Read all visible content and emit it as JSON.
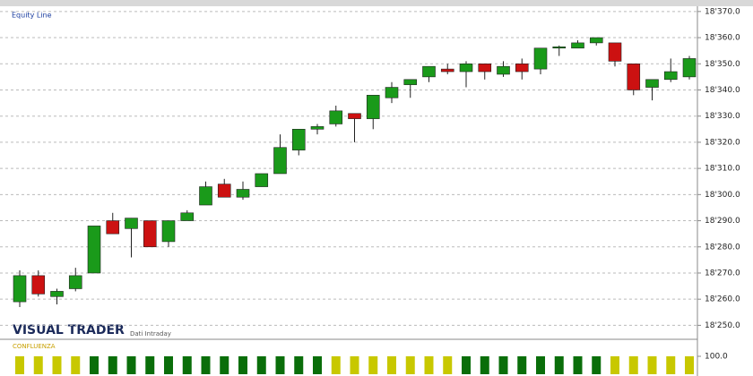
{
  "branding": {
    "name": "VISUAL TRADER",
    "subtitle": "Dati Intraday"
  },
  "chart_data": [
    {
      "type": "candlestick",
      "title": "Equity Line",
      "up_color": "#1a9a1a",
      "down_color": "#cc1111",
      "grid": true,
      "ylim": [
        18245,
        18372
      ],
      "yticks": [
        {
          "value": 18370,
          "label": "18'370.0"
        },
        {
          "value": 18360,
          "label": "18'360.0"
        },
        {
          "value": 18350,
          "label": "18'350.0"
        },
        {
          "value": 18340,
          "label": "18'340.0"
        },
        {
          "value": 18330,
          "label": "18'330.0"
        },
        {
          "value": 18320,
          "label": "18'320.0"
        },
        {
          "value": 18310,
          "label": "18'310.0"
        },
        {
          "value": 18300,
          "label": "18'300.0"
        },
        {
          "value": 18290,
          "label": "18'290.0"
        },
        {
          "value": 18280,
          "label": "18'280.0"
        },
        {
          "value": 18270,
          "label": "18'270.0"
        },
        {
          "value": 18260,
          "label": "18'260.0"
        },
        {
          "value": 18250,
          "label": "18'250.0"
        }
      ],
      "open": [
        18259,
        18269,
        18261,
        18264,
        18270,
        18290,
        18287,
        18290,
        18282,
        18290,
        18296,
        18304,
        18299,
        18303,
        18308,
        18317,
        18325,
        18327,
        18331,
        18329,
        18337,
        18342,
        18345,
        18348,
        18347,
        18350,
        18346,
        18350,
        18348,
        18356,
        18356,
        18358,
        18358,
        18350,
        18341,
        18344,
        18345
      ],
      "high": [
        18271,
        18271,
        18264,
        18272,
        18288,
        18293,
        18291,
        18290,
        18290,
        18294,
        18305,
        18306,
        18305,
        18308,
        18323,
        18325,
        18327,
        18334,
        18331,
        18338,
        18343,
        18344,
        18349,
        18350,
        18351,
        18350,
        18351,
        18352,
        18356,
        18357,
        18359,
        18360,
        18358,
        18350,
        18344,
        18352,
        18353
      ],
      "low": [
        18257,
        18261,
        18258,
        18263,
        18270,
        18285,
        18276,
        18280,
        18280,
        18290,
        18296,
        18299,
        18298,
        18303,
        18308,
        18315,
        18323,
        18326,
        18320,
        18325,
        18335,
        18337,
        18343,
        18346,
        18341,
        18344,
        18345,
        18344,
        18346,
        18353,
        18356,
        18357,
        18349,
        18338,
        18336,
        18343,
        18344
      ],
      "close": [
        18269,
        18262,
        18263,
        18269,
        18288,
        18285,
        18291,
        18280,
        18290,
        18293,
        18303,
        18299,
        18302,
        18308,
        18318,
        18325,
        18326,
        18332,
        18329,
        18338,
        18341,
        18344,
        18349,
        18347,
        18350,
        18347,
        18349,
        18347,
        18356,
        18356.5,
        18358,
        18360,
        18351,
        18340,
        18344,
        18347,
        18352
      ]
    },
    {
      "type": "bar",
      "title": "CONFLUENZA",
      "ylim": [
        0,
        100
      ],
      "yticks": [
        {
          "value": 100,
          "label": "100.0"
        }
      ],
      "values": [
        100,
        100,
        100,
        100,
        100,
        100,
        100,
        100,
        100,
        100,
        100,
        100,
        100,
        100,
        100,
        100,
        100,
        100,
        100,
        100,
        100,
        100,
        100,
        100,
        100,
        100,
        100,
        100,
        100,
        100,
        100,
        100,
        100,
        100,
        100,
        100,
        100
      ],
      "colors": [
        "#c8c800",
        "#c8c800",
        "#c8c800",
        "#c8c800",
        "#0a6e0a",
        "#0a6e0a",
        "#0a6e0a",
        "#0a6e0a",
        "#0a6e0a",
        "#0a6e0a",
        "#0a6e0a",
        "#0a6e0a",
        "#0a6e0a",
        "#0a6e0a",
        "#0a6e0a",
        "#0a6e0a",
        "#0a6e0a",
        "#c8c800",
        "#c8c800",
        "#c8c800",
        "#c8c800",
        "#c8c800",
        "#c8c800",
        "#c8c800",
        "#0a6e0a",
        "#0a6e0a",
        "#0a6e0a",
        "#0a6e0a",
        "#0a6e0a",
        "#0a6e0a",
        "#0a6e0a",
        "#0a6e0a",
        "#c8c800",
        "#c8c800",
        "#c8c800",
        "#c8c800",
        "#c8c800"
      ]
    }
  ]
}
